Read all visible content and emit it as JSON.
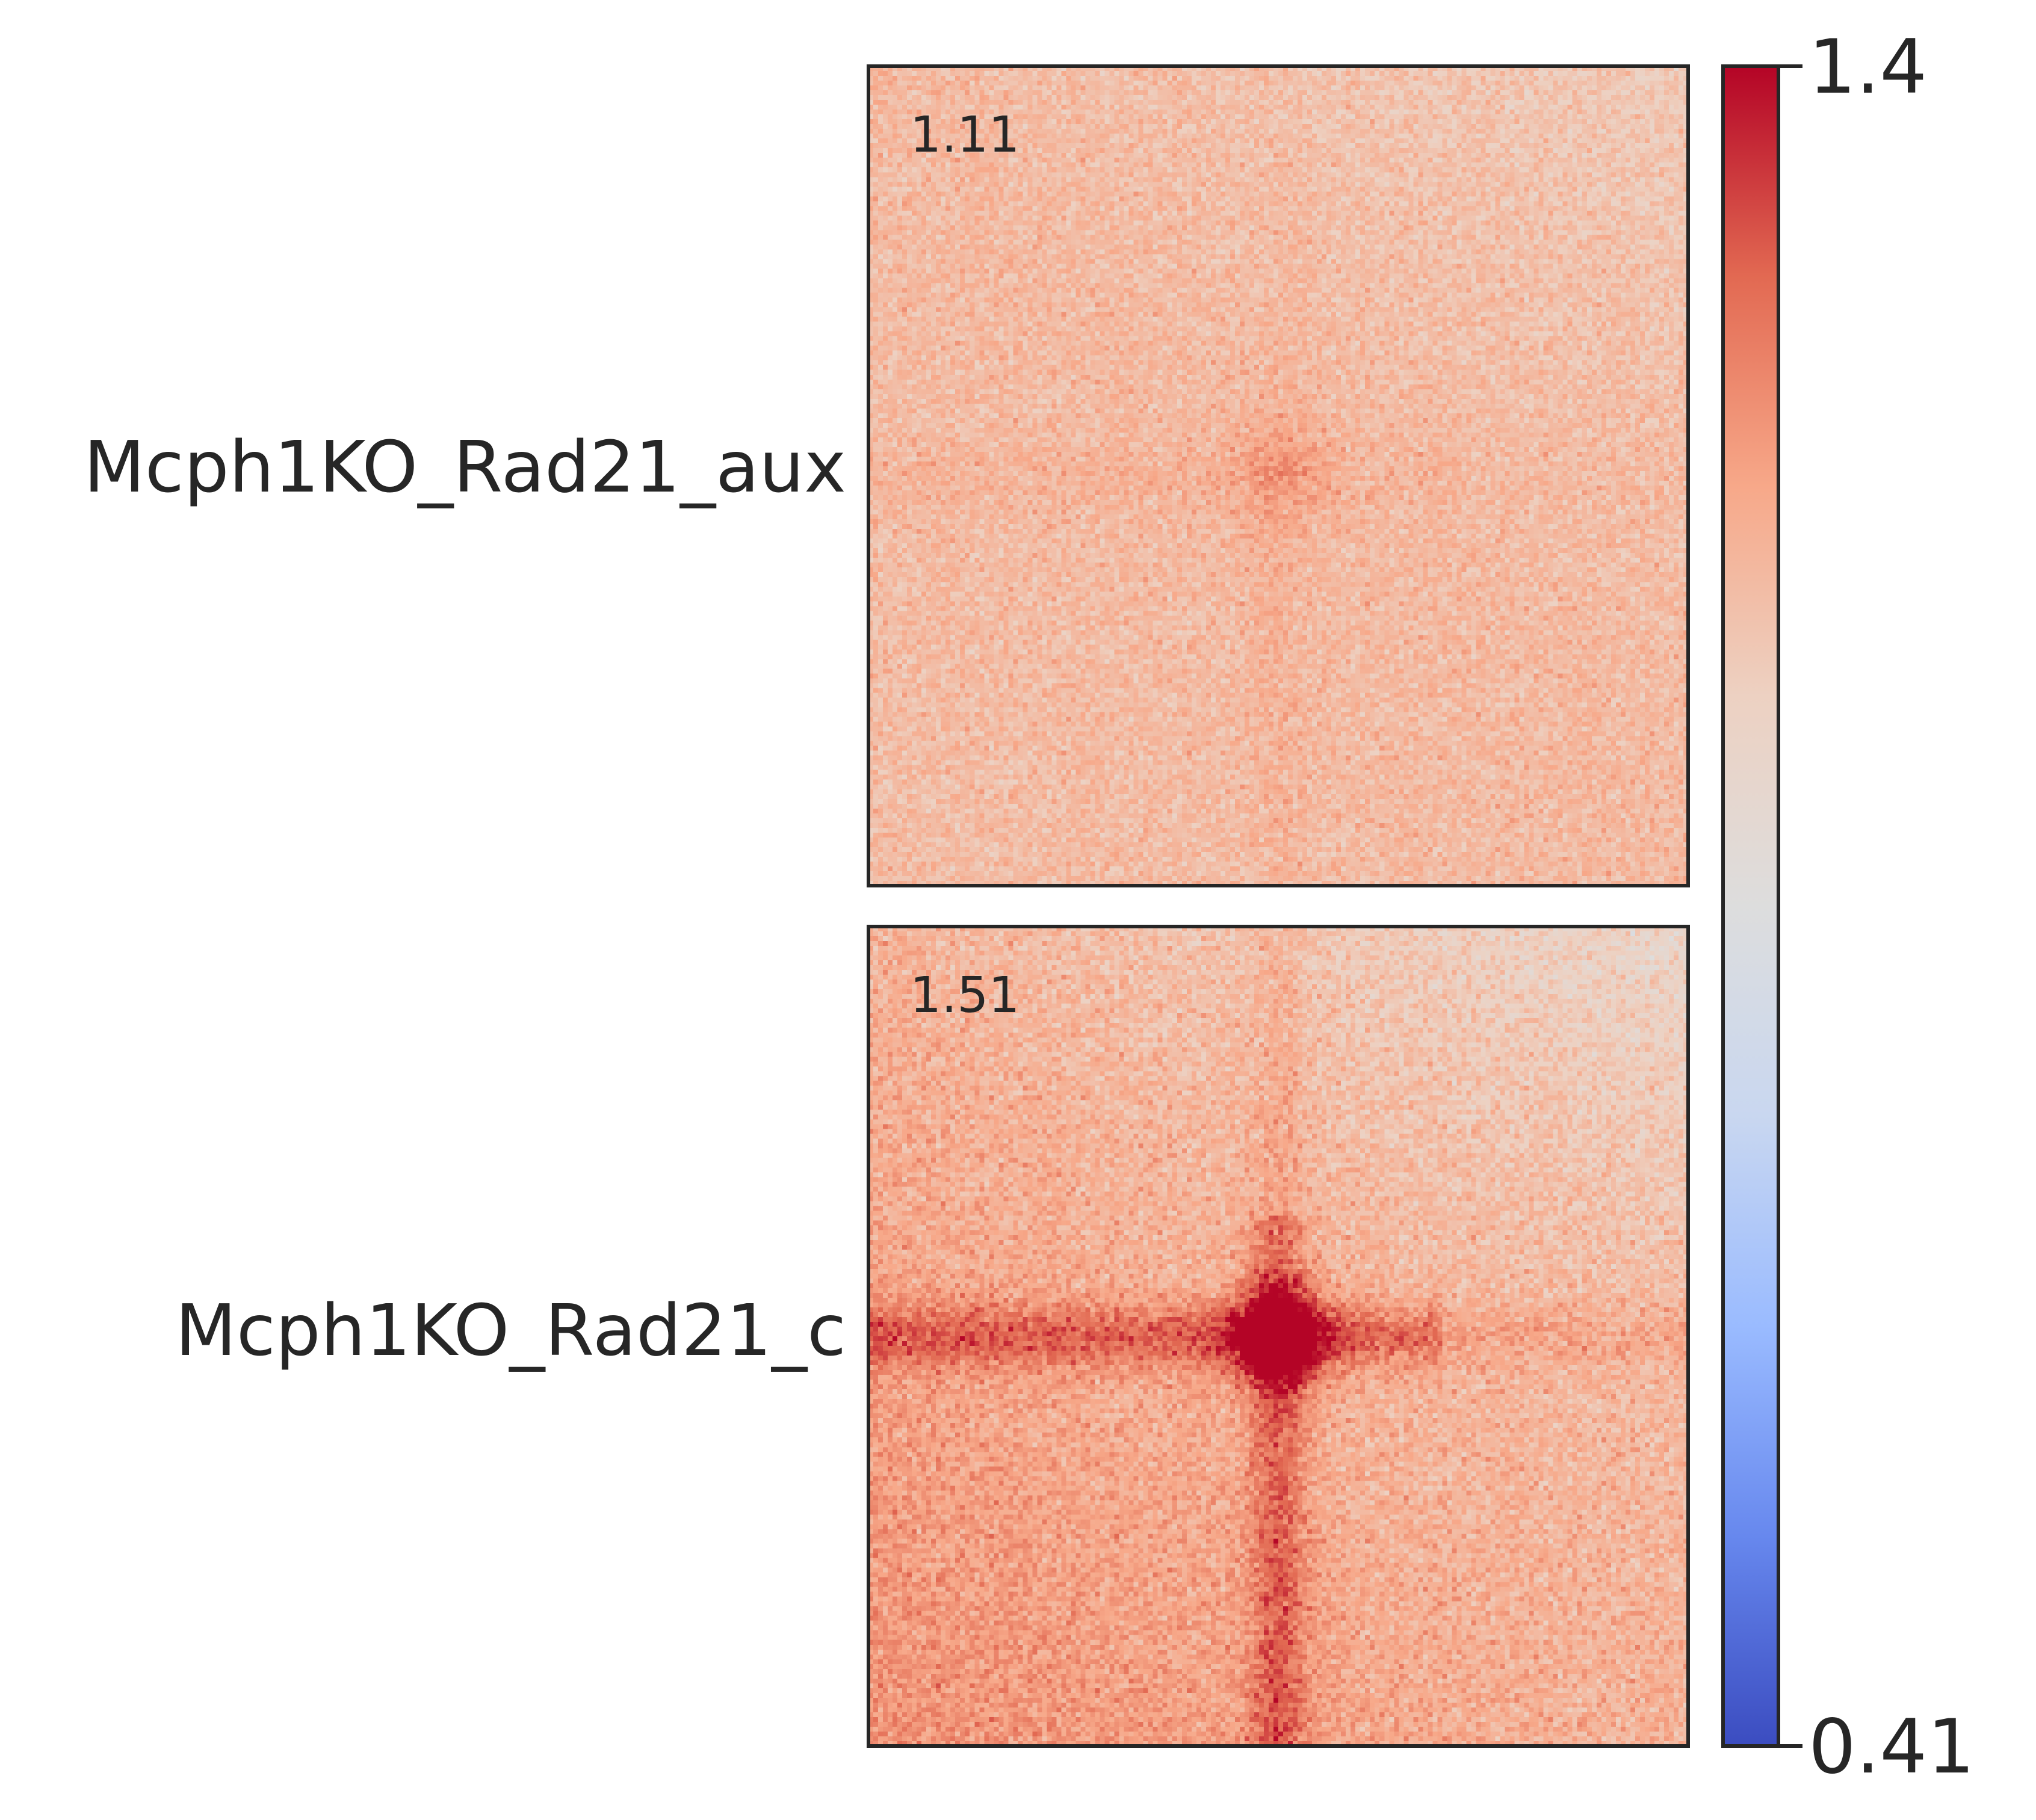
{
  "chart_data": {
    "type": "heatmap",
    "title": "",
    "colormap": "coolwarm",
    "colormap_stops": [
      "#3b4cc0",
      "#6788ee",
      "#9abbff",
      "#c9d7f0",
      "#dddddd",
      "#edd1c2",
      "#f7a889",
      "#e26952",
      "#b40426"
    ],
    "colorbar": {
      "min": 0.41,
      "max": 1.4,
      "ticks": [
        {
          "value": 1.4,
          "label": "1.4"
        },
        {
          "value": 0.41,
          "label": "0.41"
        }
      ]
    },
    "panels": [
      {
        "row_label": "Mcph1KO_Rad21_aux",
        "score": "1.11",
        "center_value": 1.16,
        "background_value": 1.1,
        "bottom_left_value": 1.09,
        "top_right_value": 1.05,
        "stripe_value": 1.12,
        "noise": 0.07
      },
      {
        "row_label": "Mcph1KO_Rad21_c",
        "score": "1.51",
        "center_value": 1.4,
        "background_value": 1.12,
        "bottom_left_value": 1.2,
        "top_right_value": 1.0,
        "stripe_value": 1.27,
        "noise": 0.08
      }
    ]
  }
}
